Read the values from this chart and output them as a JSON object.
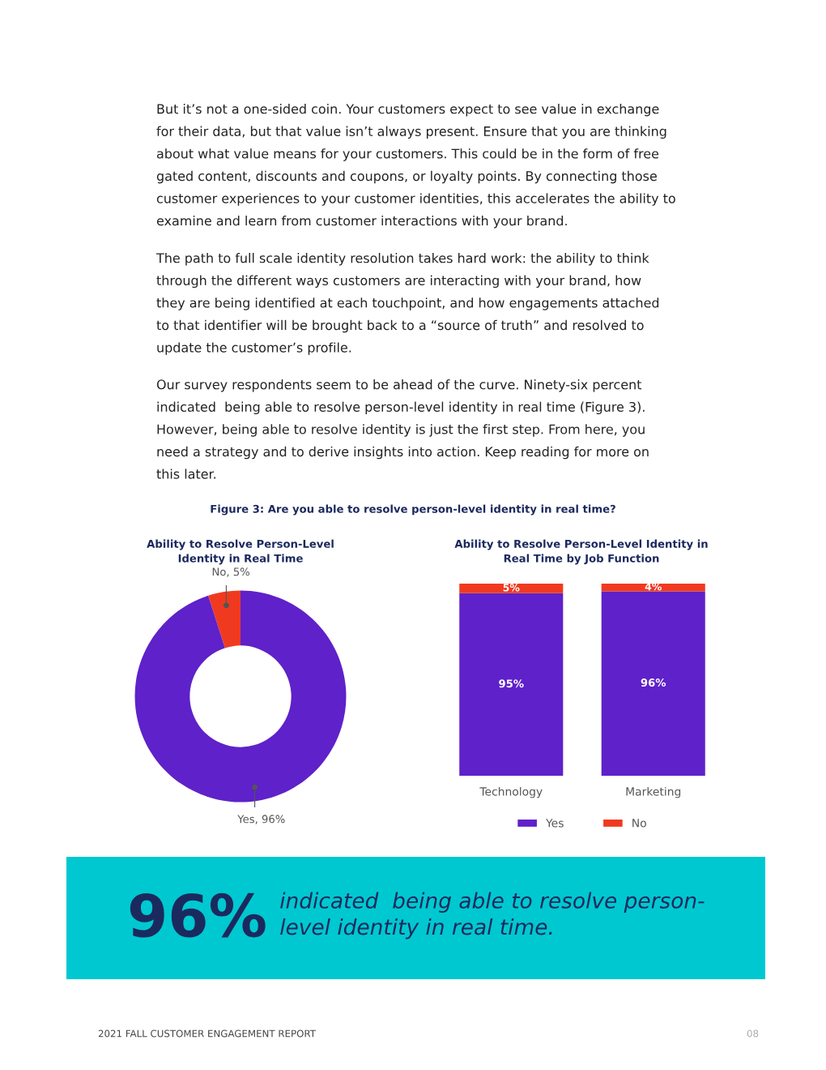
{
  "chart_data": [
    {
      "type": "other",
      "annotations": [
        "But it’s not a one-sided coin. Your customers expect to see value in exchange\nfor their data, but that value isn’t always present. Ensure that you are thinking\nabout what value means for your customers. This could be in the form of free\ngated content, discounts and coupons, or loyalty points. By connecting those\ncustomer experiences to your customer identities, this accelerates the ability to\nexamine and learn from customer interactions with your brand.",
        "The path to full scale identity resolution takes hard work: the ability to think\nthrough the different ways customers are interacting with your brand, how\nthey are being identified at each touchpoint, and how engagements attached\nto that identifier will be brought back to a “source of truth” and resolved to\nupdate the customer’s profile.",
        "Our survey respondents seem to be ahead of the curve. Ninety-six percent\nindicated  being able to resolve person-level identity in real time (Figure 3).\nHowever, being able to resolve identity is just the first step. From here, you\nneed a strategy and to derive insights into action. Keep reading for more on\nthis later.",
        "Figure 3: Are you able to resolve person-level identity in real time?",
        "2021 FALL CUSTOMER ENGAGEMENT REPORT",
        "08"
      ]
    },
    {
      "type": "donut",
      "title": "Ability to Resolve Person-Level\nIdentity in Real Time",
      "categories": [
        "No",
        "Yes"
      ],
      "values": [
        5,
        96
      ],
      "value_labels": [
        ", 5%",
        ", 96%"
      ],
      "colors": [
        "#f03a1f",
        "#5f21c9"
      ]
    },
    {
      "type": "bar",
      "stacked": true,
      "title": "Ability to Resolve Person-Level Identity in\nReal Time by Job Function",
      "categories": [
        "Technology",
        "Marketing"
      ],
      "legend": "bottom",
      "series": [
        {
          "name": "Yes",
          "color": "#5f21c9",
          "values": [
            95,
            96
          ],
          "value_labels": [
            "95%",
            "96%"
          ]
        },
        {
          "name": "No",
          "color": "#f03a1f",
          "values": [
            5,
            4
          ],
          "value_labels": [
            "5%",
            "4%"
          ]
        }
      ]
    },
    {
      "type": "other",
      "color": "#00c8d0",
      "title": "96%",
      "annotations": [
        "indicated  being able to resolve person-\nlevel identity in real time."
      ]
    }
  ]
}
